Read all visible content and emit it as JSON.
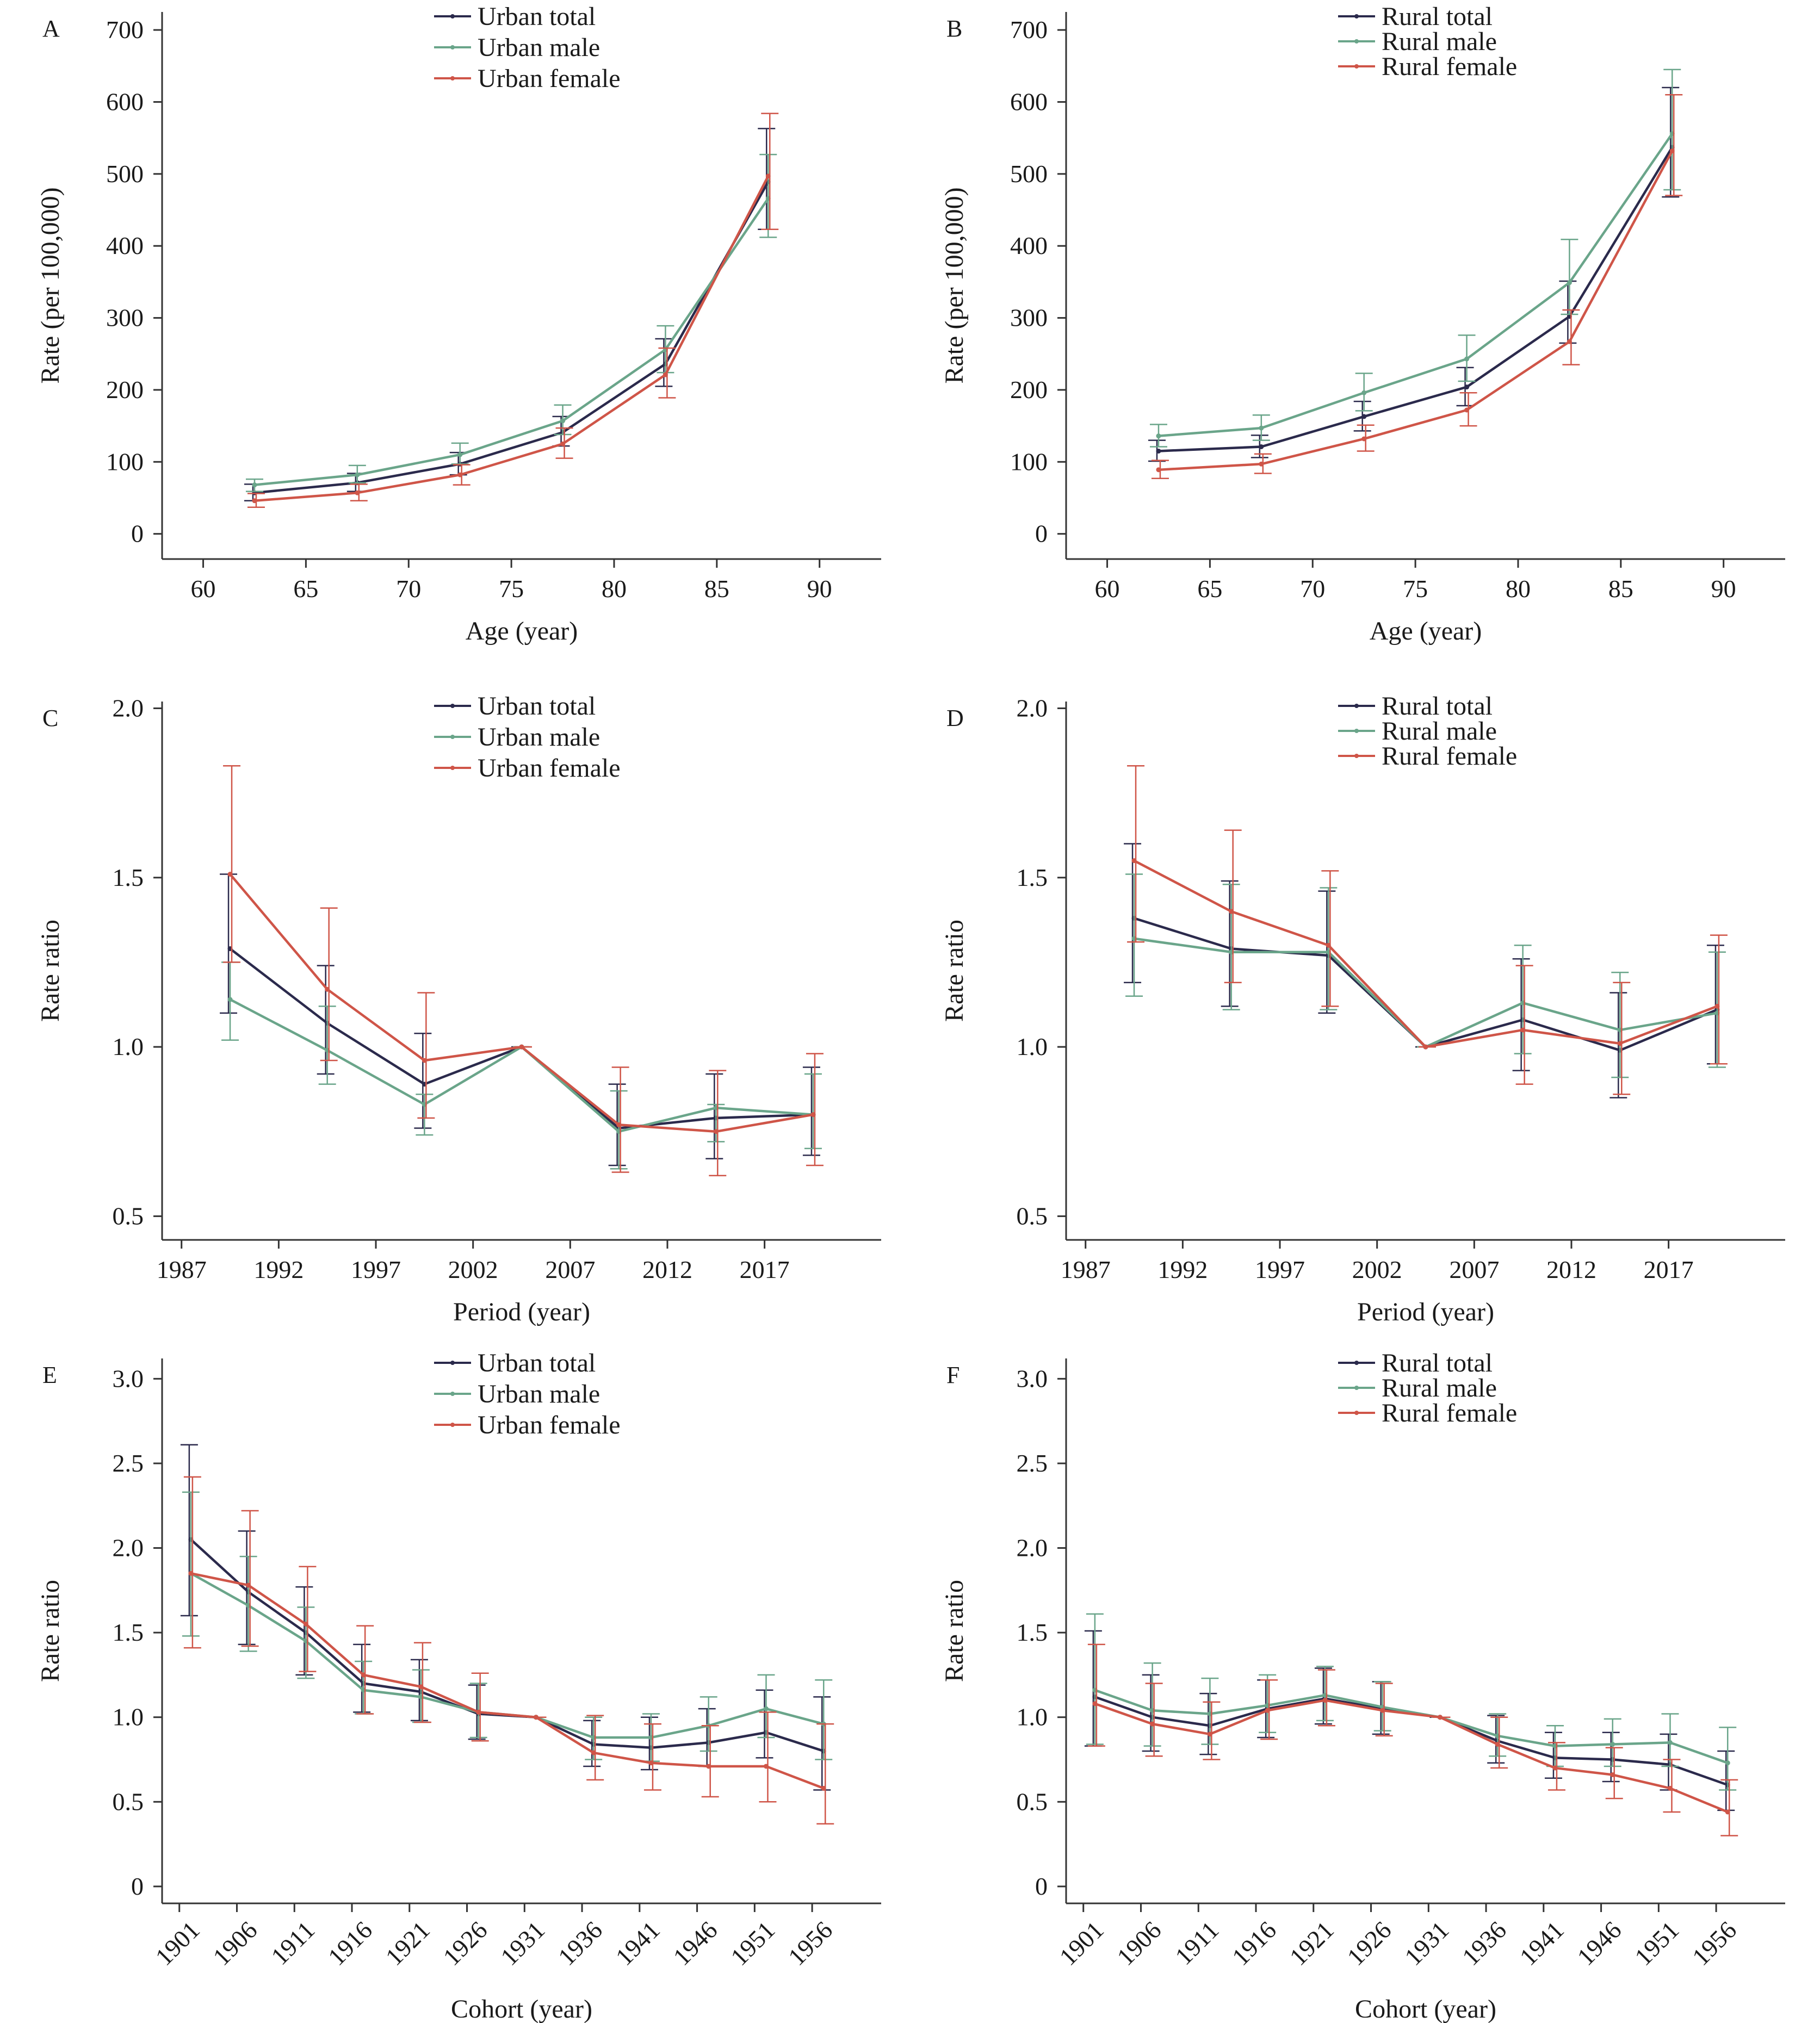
{
  "colors": {
    "total": "#2b2a4c",
    "male": "#6aa58a",
    "female": "#cf5548"
  },
  "chart_data": [
    {
      "panel": "A",
      "type": "line",
      "xlabel": "Age (year)",
      "ylabel": "Rate (per 100,000)",
      "xlim": [
        58,
        93
      ],
      "ylim": [
        -35,
        725
      ],
      "xticks": [
        60,
        65,
        70,
        75,
        80,
        85,
        90
      ],
      "yticks": [
        0,
        100,
        200,
        300,
        400,
        500,
        600,
        700
      ],
      "x_tick_labels": [
        "60",
        "65",
        "70",
        "75",
        "80",
        "85",
        "90"
      ],
      "y_tick_labels": [
        "0",
        "100",
        "200",
        "300",
        "400",
        "500",
        "600",
        "700"
      ],
      "legend": "top-center",
      "x": [
        62.5,
        67.5,
        72.5,
        77.5,
        82.5,
        87.5
      ],
      "series": [
        {
          "name": "Urban total",
          "color_key": "total",
          "values": [
            57,
            71,
            97,
            141,
            236,
            489
          ],
          "lower": [
            46,
            59,
            82,
            122,
            205,
            423
          ],
          "upper": [
            69,
            84,
            113,
            163,
            271,
            563
          ]
        },
        {
          "name": "Urban male",
          "color_key": "male",
          "values": [
            68,
            82,
            110,
            157,
            256,
            466
          ],
          "lower": [
            59,
            71,
            97,
            138,
            224,
            412
          ],
          "upper": [
            76,
            95,
            126,
            179,
            289,
            527
          ]
        },
        {
          "name": "Urban female",
          "color_key": "female",
          "values": [
            46,
            57,
            82,
            125,
            221,
            497
          ],
          "lower": [
            37,
            46,
            68,
            105,
            189,
            423
          ],
          "upper": [
            56,
            69,
            96,
            147,
            258,
            584
          ]
        }
      ]
    },
    {
      "panel": "B",
      "type": "line",
      "xlabel": "Age (year)",
      "ylabel": "Rate (per 100,000)",
      "xlim": [
        58,
        93
      ],
      "ylim": [
        -35,
        725
      ],
      "xticks": [
        60,
        65,
        70,
        75,
        80,
        85,
        90
      ],
      "yticks": [
        0,
        100,
        200,
        300,
        400,
        500,
        600,
        700
      ],
      "x_tick_labels": [
        "60",
        "65",
        "70",
        "75",
        "80",
        "85",
        "90"
      ],
      "y_tick_labels": [
        "0",
        "100",
        "200",
        "300",
        "400",
        "500",
        "600",
        "700"
      ],
      "legend": "top-center",
      "x": [
        62.5,
        67.5,
        72.5,
        77.5,
        82.5,
        87.5
      ],
      "series": [
        {
          "name": "Rural total",
          "color_key": "total",
          "values": [
            115,
            121,
            163,
            204,
            302,
            537
          ],
          "lower": [
            101,
            106,
            143,
            178,
            265,
            468
          ],
          "upper": [
            130,
            137,
            184,
            231,
            351,
            620
          ]
        },
        {
          "name": "Rural male",
          "color_key": "male",
          "values": [
            136,
            147,
            196,
            243,
            349,
            556
          ],
          "lower": [
            121,
            130,
            171,
            212,
            305,
            478
          ],
          "upper": [
            152,
            165,
            223,
            276,
            409,
            645
          ]
        },
        {
          "name": "Rural female",
          "color_key": "female",
          "values": [
            89,
            97,
            132,
            172,
            267,
            532
          ],
          "lower": [
            77,
            84,
            115,
            150,
            235,
            470
          ],
          "upper": [
            102,
            111,
            151,
            196,
            311,
            610
          ]
        }
      ]
    },
    {
      "panel": "C",
      "type": "line",
      "xlabel": "Period (year)",
      "ylabel": "Rate ratio",
      "xlim": [
        1986,
        2023
      ],
      "ylim": [
        0.43,
        2.02
      ],
      "xticks": [
        1987,
        1992,
        1997,
        2002,
        2007,
        2012,
        2017
      ],
      "yticks": [
        0.5,
        1.0,
        1.5,
        2.0
      ],
      "x_tick_labels": [
        "1987",
        "1992",
        "1997",
        "2002",
        "2007",
        "2012",
        "2017"
      ],
      "y_tick_labels": [
        "0.5",
        "1.0",
        "1.5",
        "2.0"
      ],
      "legend": "top-center",
      "x": [
        1989.5,
        1994.5,
        1999.5,
        2004.5,
        2009.5,
        2014.5,
        2019.5
      ],
      "series": [
        {
          "name": "Urban total",
          "color_key": "total",
          "values": [
            1.29,
            1.07,
            0.89,
            1.0,
            0.76,
            0.79,
            0.8
          ],
          "lower": [
            1.1,
            0.92,
            0.76,
            1.0,
            0.65,
            0.67,
            0.68
          ],
          "upper": [
            1.51,
            1.24,
            1.04,
            1.0,
            0.89,
            0.92,
            0.94
          ]
        },
        {
          "name": "Urban male",
          "color_key": "male",
          "values": [
            1.14,
            0.99,
            0.83,
            1.0,
            0.75,
            0.82,
            0.8
          ],
          "lower": [
            1.02,
            0.89,
            0.74,
            1.0,
            0.64,
            0.72,
            0.7
          ],
          "upper": [
            1.25,
            1.12,
            0.86,
            1.0,
            0.87,
            0.83,
            0.92
          ]
        },
        {
          "name": "Urban female",
          "color_key": "female",
          "values": [
            1.51,
            1.17,
            0.96,
            1.0,
            0.77,
            0.75,
            0.8
          ],
          "lower": [
            1.25,
            0.96,
            0.79,
            1.0,
            0.63,
            0.62,
            0.65
          ],
          "upper": [
            1.83,
            1.41,
            1.16,
            1.0,
            0.94,
            0.93,
            0.98
          ]
        }
      ]
    },
    {
      "panel": "D",
      "type": "line",
      "xlabel": "Period (year)",
      "ylabel": "Rate ratio",
      "xlim": [
        1986,
        2023
      ],
      "ylim": [
        0.43,
        2.02
      ],
      "xticks": [
        1987,
        1992,
        1997,
        2002,
        2007,
        2012,
        2017
      ],
      "yticks": [
        0.5,
        1.0,
        1.5,
        2.0
      ],
      "x_tick_labels": [
        "1987",
        "1992",
        "1997",
        "2002",
        "2007",
        "2012",
        "2017"
      ],
      "y_tick_labels": [
        "0.5",
        "1.0",
        "1.5",
        "2.0"
      ],
      "legend": "top-center",
      "x": [
        1989.5,
        1994.5,
        1999.5,
        2004.5,
        2009.5,
        2014.5,
        2019.5
      ],
      "series": [
        {
          "name": "Rural total",
          "color_key": "total",
          "values": [
            1.38,
            1.29,
            1.27,
            1.0,
            1.08,
            0.99,
            1.11
          ],
          "lower": [
            1.19,
            1.12,
            1.1,
            1.0,
            0.93,
            0.85,
            0.95
          ],
          "upper": [
            1.6,
            1.49,
            1.46,
            1.0,
            1.26,
            1.16,
            1.3
          ]
        },
        {
          "name": "Rural male",
          "color_key": "male",
          "values": [
            1.32,
            1.28,
            1.28,
            1.0,
            1.13,
            1.05,
            1.1
          ],
          "lower": [
            1.15,
            1.11,
            1.11,
            1.0,
            0.98,
            0.91,
            0.94
          ],
          "upper": [
            1.51,
            1.48,
            1.47,
            1.0,
            1.3,
            1.22,
            1.28
          ]
        },
        {
          "name": "Rural female",
          "color_key": "female",
          "values": [
            1.55,
            1.4,
            1.3,
            1.0,
            1.05,
            1.01,
            1.12
          ],
          "lower": [
            1.31,
            1.19,
            1.12,
            1.0,
            0.89,
            0.86,
            0.95
          ],
          "upper": [
            1.83,
            1.64,
            1.52,
            1.0,
            1.24,
            1.19,
            1.33
          ]
        }
      ]
    },
    {
      "panel": "E",
      "type": "line",
      "xlabel": "Cohort (year)",
      "ylabel": "Rate ratio",
      "xlim": [
        1899.5,
        1962
      ],
      "ylim": [
        -0.1,
        3.12
      ],
      "xticks": [
        1901,
        1906,
        1911,
        1916,
        1921,
        1926,
        1931,
        1936,
        1941,
        1946,
        1951,
        1956
      ],
      "yticks": [
        0,
        0.5,
        1.0,
        1.5,
        2.0,
        2.5,
        3.0
      ],
      "x_tick_labels": [
        "1901",
        "1906",
        "1911",
        "1916",
        "1921",
        "1926",
        "1931",
        "1936",
        "1941",
        "1946",
        "1951",
        "1956"
      ],
      "y_tick_labels": [
        "0",
        "0.5",
        "1.0",
        "1.5",
        "2.0",
        "2.5",
        "3.0"
      ],
      "legend": "top-center",
      "x": [
        1902,
        1907,
        1912,
        1917,
        1922,
        1927,
        1932,
        1937,
        1942,
        1947,
        1952,
        1957
      ],
      "series": [
        {
          "name": "Urban total",
          "color_key": "total",
          "values": [
            2.05,
            1.74,
            1.5,
            1.2,
            1.15,
            1.02,
            1.0,
            0.84,
            0.82,
            0.85,
            0.91,
            0.8
          ],
          "lower": [
            1.6,
            1.43,
            1.25,
            1.03,
            0.98,
            0.87,
            1.0,
            0.71,
            0.69,
            0.71,
            0.76,
            0.57
          ],
          "upper": [
            2.61,
            2.1,
            1.77,
            1.43,
            1.34,
            1.19,
            1.0,
            0.98,
            1.0,
            1.05,
            1.16,
            1.12
          ]
        },
        {
          "name": "Urban male",
          "color_key": "male",
          "values": [
            1.85,
            1.66,
            1.45,
            1.16,
            1.12,
            1.03,
            1.0,
            0.88,
            0.88,
            0.95,
            1.05,
            0.96
          ],
          "lower": [
            1.48,
            1.39,
            1.23,
            1.02,
            0.97,
            0.88,
            1.0,
            0.75,
            0.74,
            0.8,
            0.88,
            0.75
          ],
          "upper": [
            2.33,
            1.95,
            1.65,
            1.33,
            1.28,
            1.2,
            1.0,
            1.0,
            1.02,
            1.12,
            1.25,
            1.22
          ]
        },
        {
          "name": "Urban female",
          "color_key": "female",
          "values": [
            1.85,
            1.78,
            1.55,
            1.25,
            1.18,
            1.03,
            1.0,
            0.79,
            0.73,
            0.71,
            0.71,
            0.58
          ],
          "lower": [
            1.41,
            1.42,
            1.27,
            1.02,
            0.97,
            0.86,
            1.0,
            0.63,
            0.57,
            0.53,
            0.5,
            0.37
          ],
          "upper": [
            2.42,
            2.22,
            1.89,
            1.54,
            1.44,
            1.26,
            1.0,
            1.01,
            0.96,
            0.95,
            1.03,
            0.96
          ]
        }
      ]
    },
    {
      "panel": "F",
      "type": "line",
      "xlabel": "Cohort (year)",
      "ylabel": "Rate ratio",
      "xlim": [
        1899.5,
        1962
      ],
      "ylim": [
        -0.1,
        3.12
      ],
      "xticks": [
        1901,
        1906,
        1911,
        1916,
        1921,
        1926,
        1931,
        1936,
        1941,
        1946,
        1951,
        1956
      ],
      "yticks": [
        0,
        0.5,
        1.0,
        1.5,
        2.0,
        2.5,
        3.0
      ],
      "x_tick_labels": [
        "1901",
        "1906",
        "1911",
        "1916",
        "1921",
        "1926",
        "1931",
        "1936",
        "1941",
        "1946",
        "1951",
        "1956"
      ],
      "y_tick_labels": [
        "0",
        "0.5",
        "1.0",
        "1.5",
        "2.0",
        "2.5",
        "3.0"
      ],
      "legend": "top-center",
      "x": [
        1902,
        1907,
        1912,
        1917,
        1922,
        1927,
        1932,
        1937,
        1942,
        1947,
        1952,
        1957
      ],
      "series": [
        {
          "name": "Rural total",
          "color_key": "total",
          "values": [
            1.12,
            1.0,
            0.95,
            1.05,
            1.11,
            1.05,
            1.0,
            0.86,
            0.76,
            0.75,
            0.72,
            0.6
          ],
          "lower": [
            0.83,
            0.8,
            0.78,
            0.88,
            0.96,
            0.9,
            1.0,
            0.73,
            0.64,
            0.62,
            0.57,
            0.45
          ],
          "upper": [
            1.51,
            1.25,
            1.14,
            1.22,
            1.29,
            1.21,
            1.0,
            1.01,
            0.91,
            0.91,
            0.9,
            0.8
          ]
        },
        {
          "name": "Rural male",
          "color_key": "male",
          "values": [
            1.16,
            1.04,
            1.02,
            1.07,
            1.13,
            1.06,
            1.0,
            0.89,
            0.83,
            0.84,
            0.85,
            0.73
          ],
          "lower": [
            0.84,
            0.83,
            0.84,
            0.91,
            0.98,
            0.92,
            1.0,
            0.77,
            0.71,
            0.71,
            0.71,
            0.57
          ],
          "upper": [
            1.61,
            1.32,
            1.23,
            1.25,
            1.3,
            1.21,
            1.0,
            1.02,
            0.95,
            0.99,
            1.02,
            0.94
          ]
        },
        {
          "name": "Rural female",
          "color_key": "female",
          "values": [
            1.08,
            0.96,
            0.9,
            1.04,
            1.1,
            1.04,
            1.0,
            0.84,
            0.7,
            0.66,
            0.58,
            0.44
          ],
          "lower": [
            0.83,
            0.77,
            0.75,
            0.87,
            0.95,
            0.89,
            1.0,
            0.7,
            0.57,
            0.52,
            0.44,
            0.3
          ],
          "upper": [
            1.43,
            1.2,
            1.09,
            1.22,
            1.28,
            1.2,
            1.0,
            1.0,
            0.85,
            0.82,
            0.75,
            0.63
          ]
        }
      ]
    }
  ]
}
